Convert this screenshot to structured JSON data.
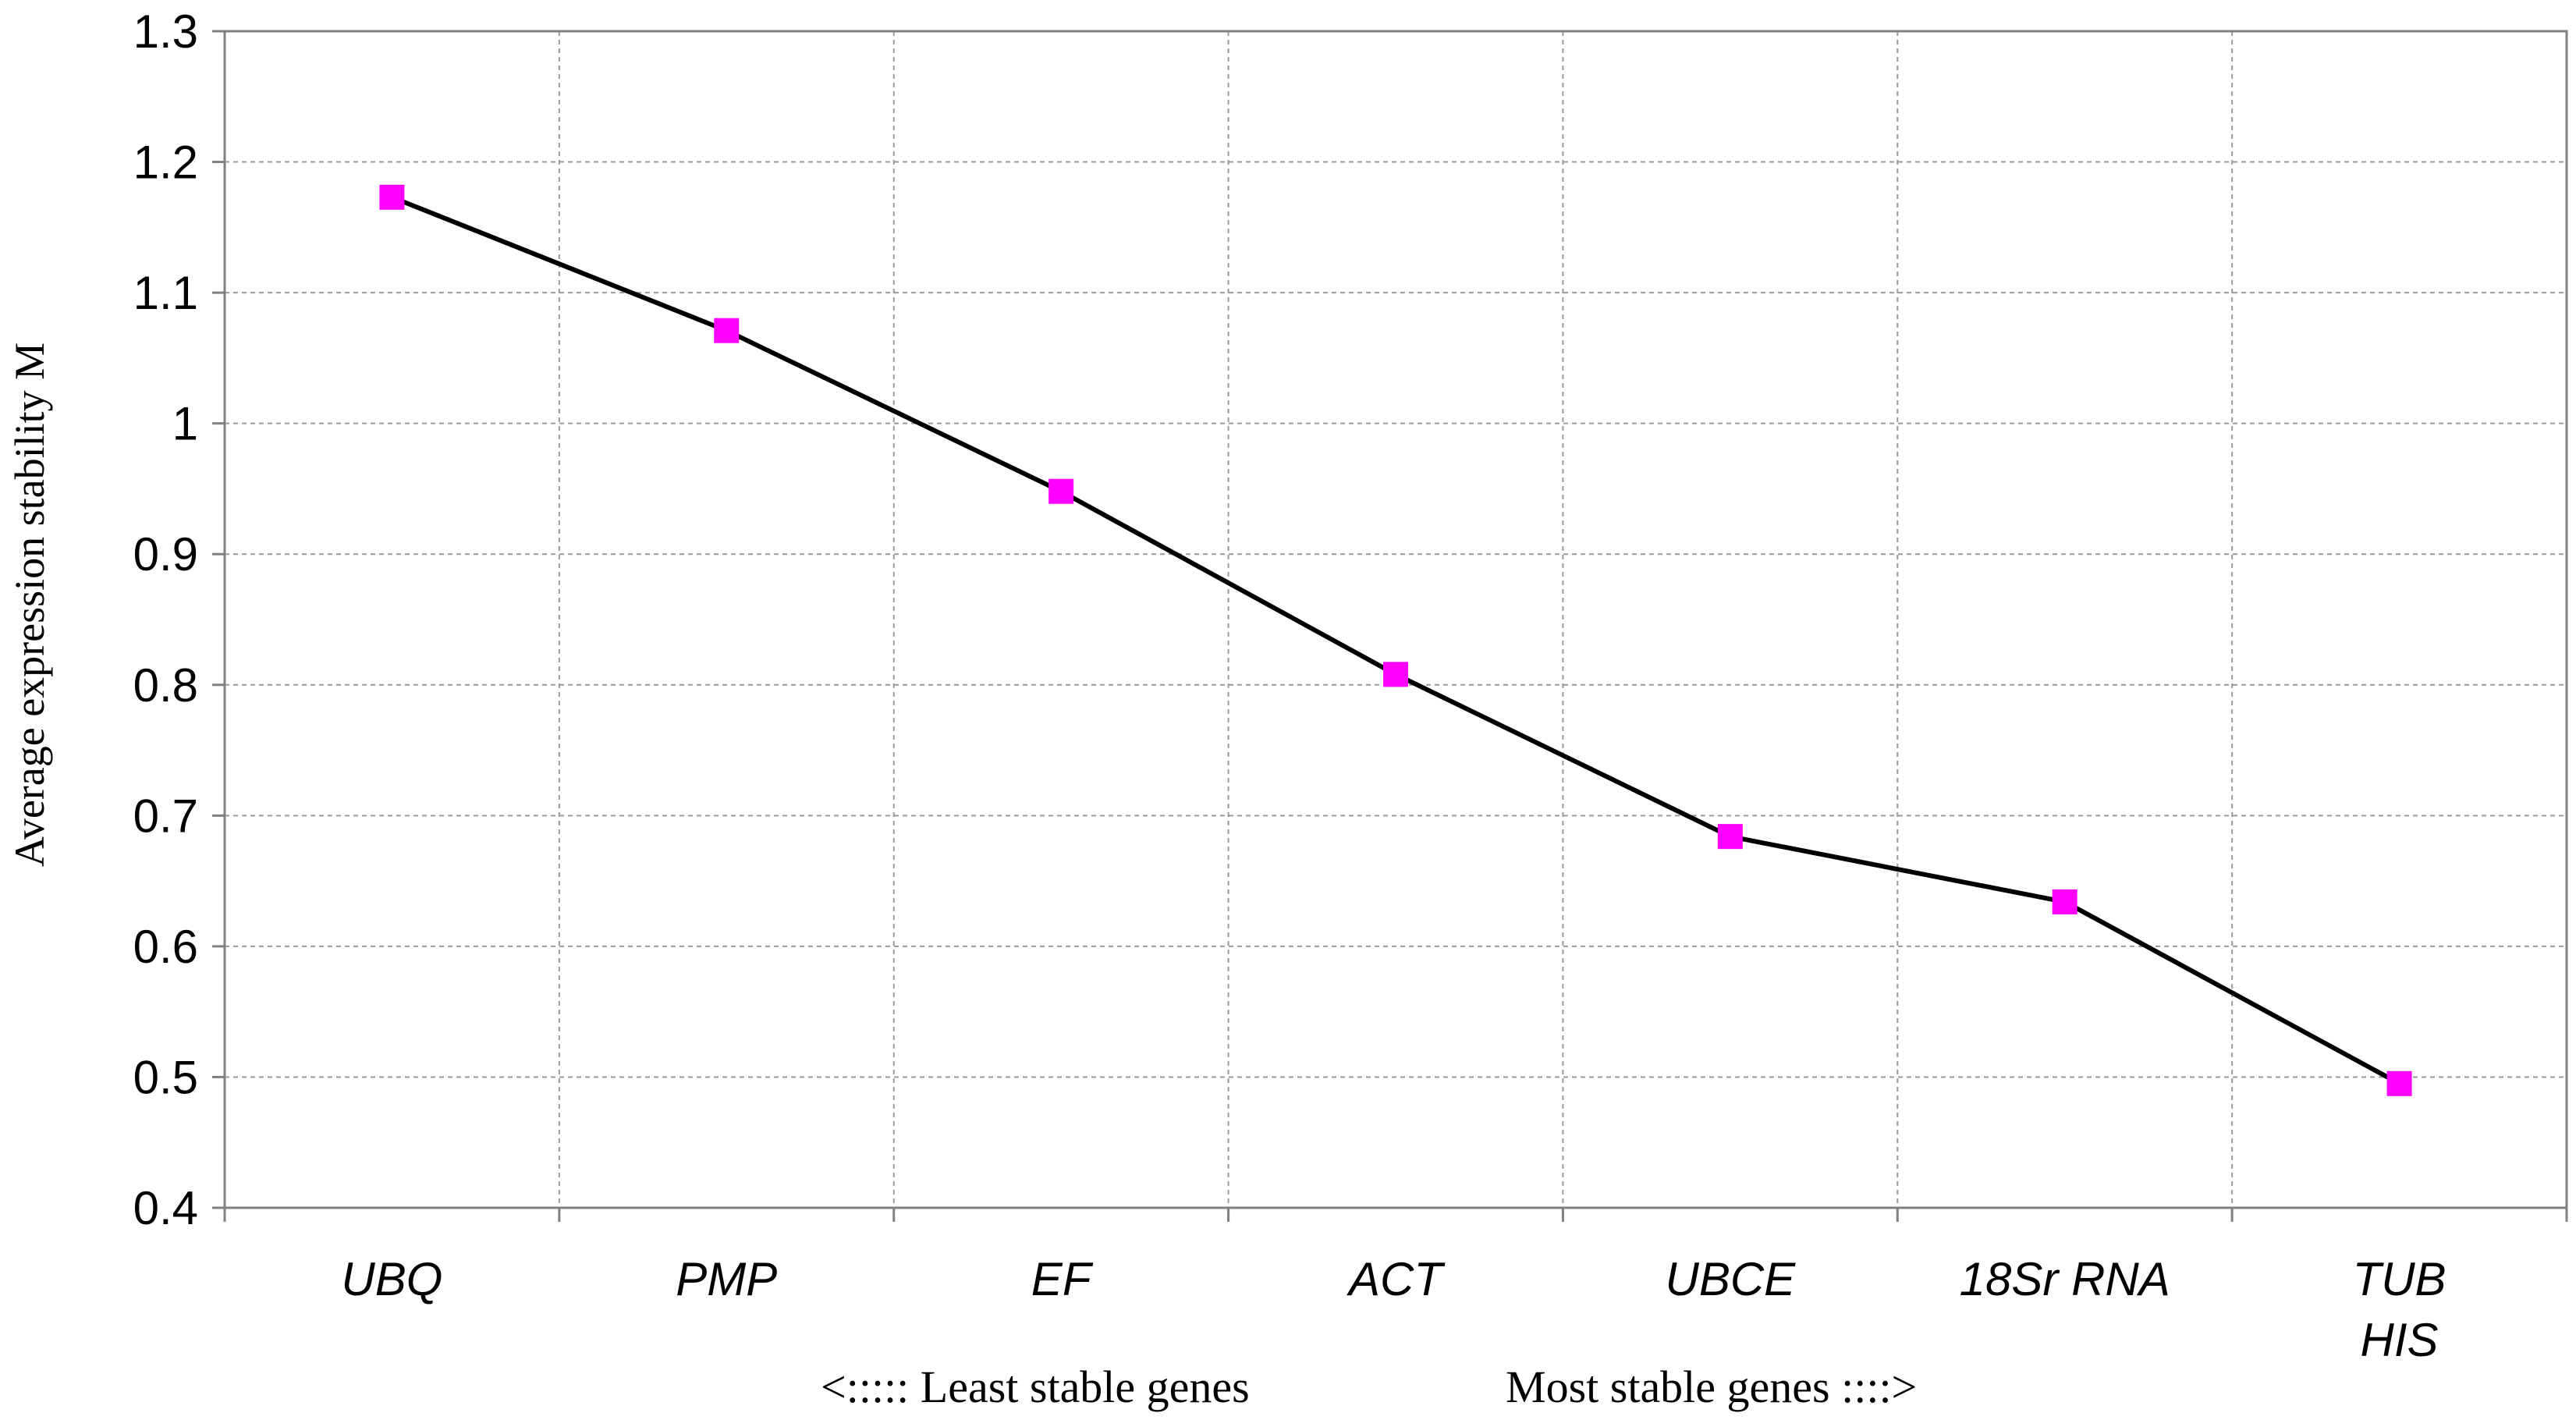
{
  "chart_data": {
    "type": "line",
    "categories": [
      "UBQ",
      "PMP",
      "EF",
      "ACT",
      "UBCE",
      "18Sr RNA",
      "TUB\nHIS"
    ],
    "series": [
      {
        "values": [
          1.173,
          1.071,
          0.948,
          0.808,
          0.684,
          0.634,
          0.495
        ],
        "color": "#000000",
        "marker_color": "#ff00ff",
        "marker": "square"
      }
    ],
    "xlabel": "",
    "ylabel": "Average expression stability M",
    "ylim": [
      0.4,
      1.3
    ],
    "yticks": [
      "0.4",
      "0.5",
      "0.6",
      "0.7",
      "0.8",
      "0.9",
      "1",
      "1.1",
      "1.2",
      "1.3"
    ],
    "grid": true,
    "legend": "none",
    "annotations": {
      "left": "<:::::  Least stable genes",
      "right": "Most stable genes ::::>"
    }
  }
}
